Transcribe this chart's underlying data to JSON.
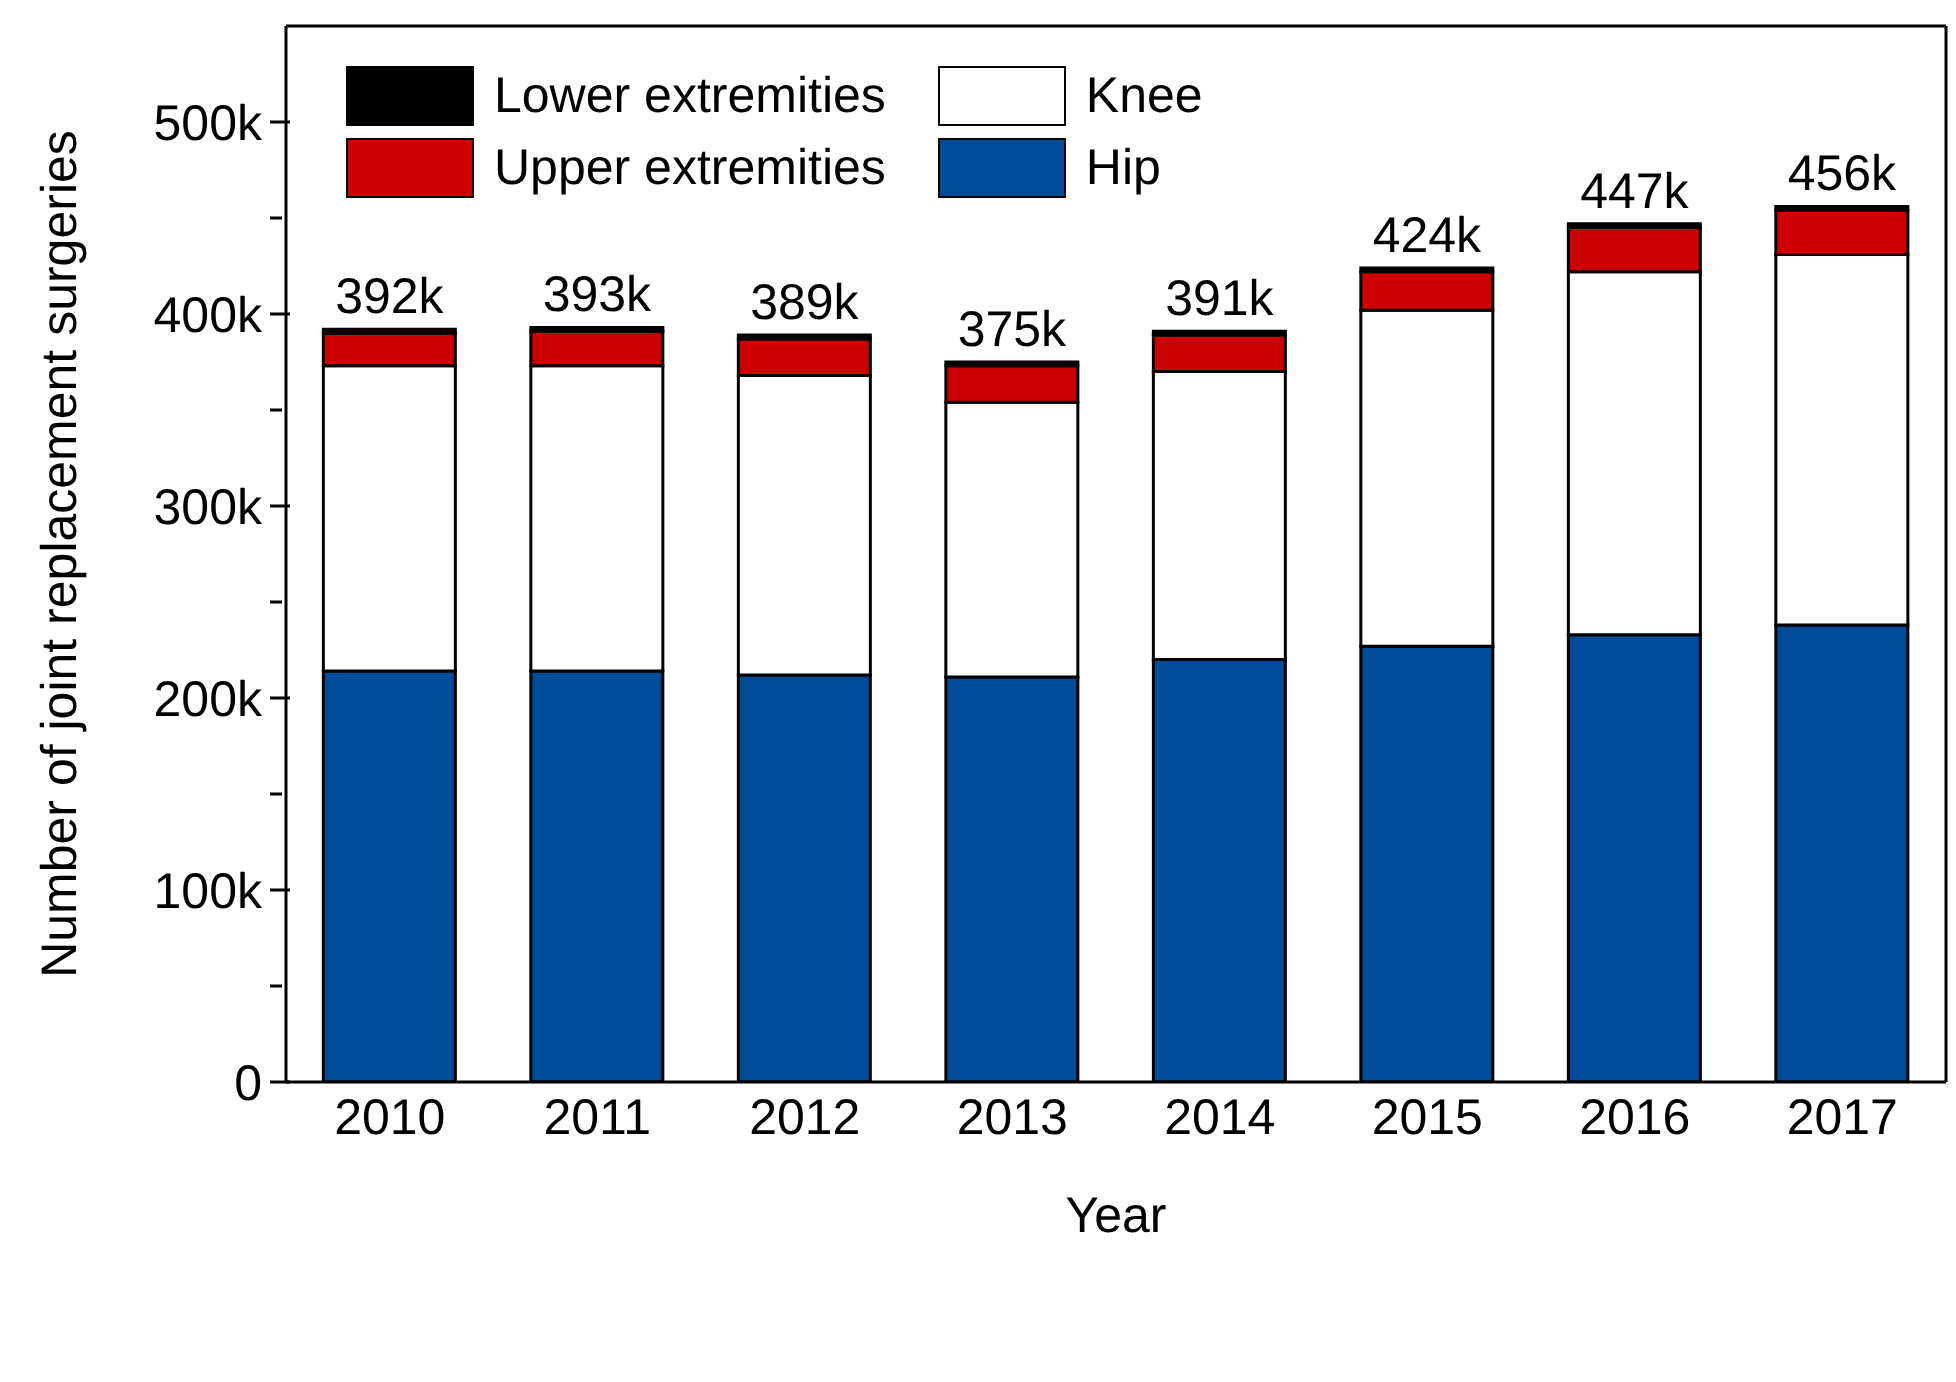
{
  "chart_data": {
    "type": "bar",
    "stacked": true,
    "xlabel": "Year",
    "ylabel": "Number of joint replacement surgeries",
    "categories": [
      "2010",
      "2011",
      "2012",
      "2013",
      "2014",
      "2015",
      "2016",
      "2017"
    ],
    "series": [
      {
        "name": "Hip",
        "color": "#004c99",
        "values": [
          214000,
          214000,
          212000,
          211000,
          220000,
          227000,
          233000,
          238000
        ]
      },
      {
        "name": "Knee",
        "color": "#ffffff",
        "values": [
          159000,
          159000,
          156000,
          143000,
          150000,
          175000,
          189000,
          193000
        ]
      },
      {
        "name": "Upper extremities",
        "color": "#cc0000",
        "values": [
          17000,
          18000,
          19000,
          19000,
          19000,
          20000,
          23000,
          23000
        ]
      },
      {
        "name": "Lower extremities",
        "color": "#000000",
        "values": [
          2000,
          2000,
          2000,
          2000,
          2000,
          2000,
          2000,
          2000
        ]
      }
    ],
    "totals": [
      "392k",
      "393k",
      "389k",
      "375k",
      "391k",
      "424k",
      "447k",
      "456k"
    ],
    "ylim": [
      0,
      550000
    ],
    "yticks": [
      {
        "value": 0,
        "label": "0"
      },
      {
        "value": 50000,
        "label": null
      },
      {
        "value": 100000,
        "label": "100k"
      },
      {
        "value": 150000,
        "label": null
      },
      {
        "value": 200000,
        "label": "200k"
      },
      {
        "value": 250000,
        "label": null
      },
      {
        "value": 300000,
        "label": "300k"
      },
      {
        "value": 350000,
        "label": null
      },
      {
        "value": 400000,
        "label": "400k"
      },
      {
        "value": 450000,
        "label": null
      },
      {
        "value": 500000,
        "label": "500k"
      }
    ],
    "legend": "top left",
    "grid": false
  }
}
